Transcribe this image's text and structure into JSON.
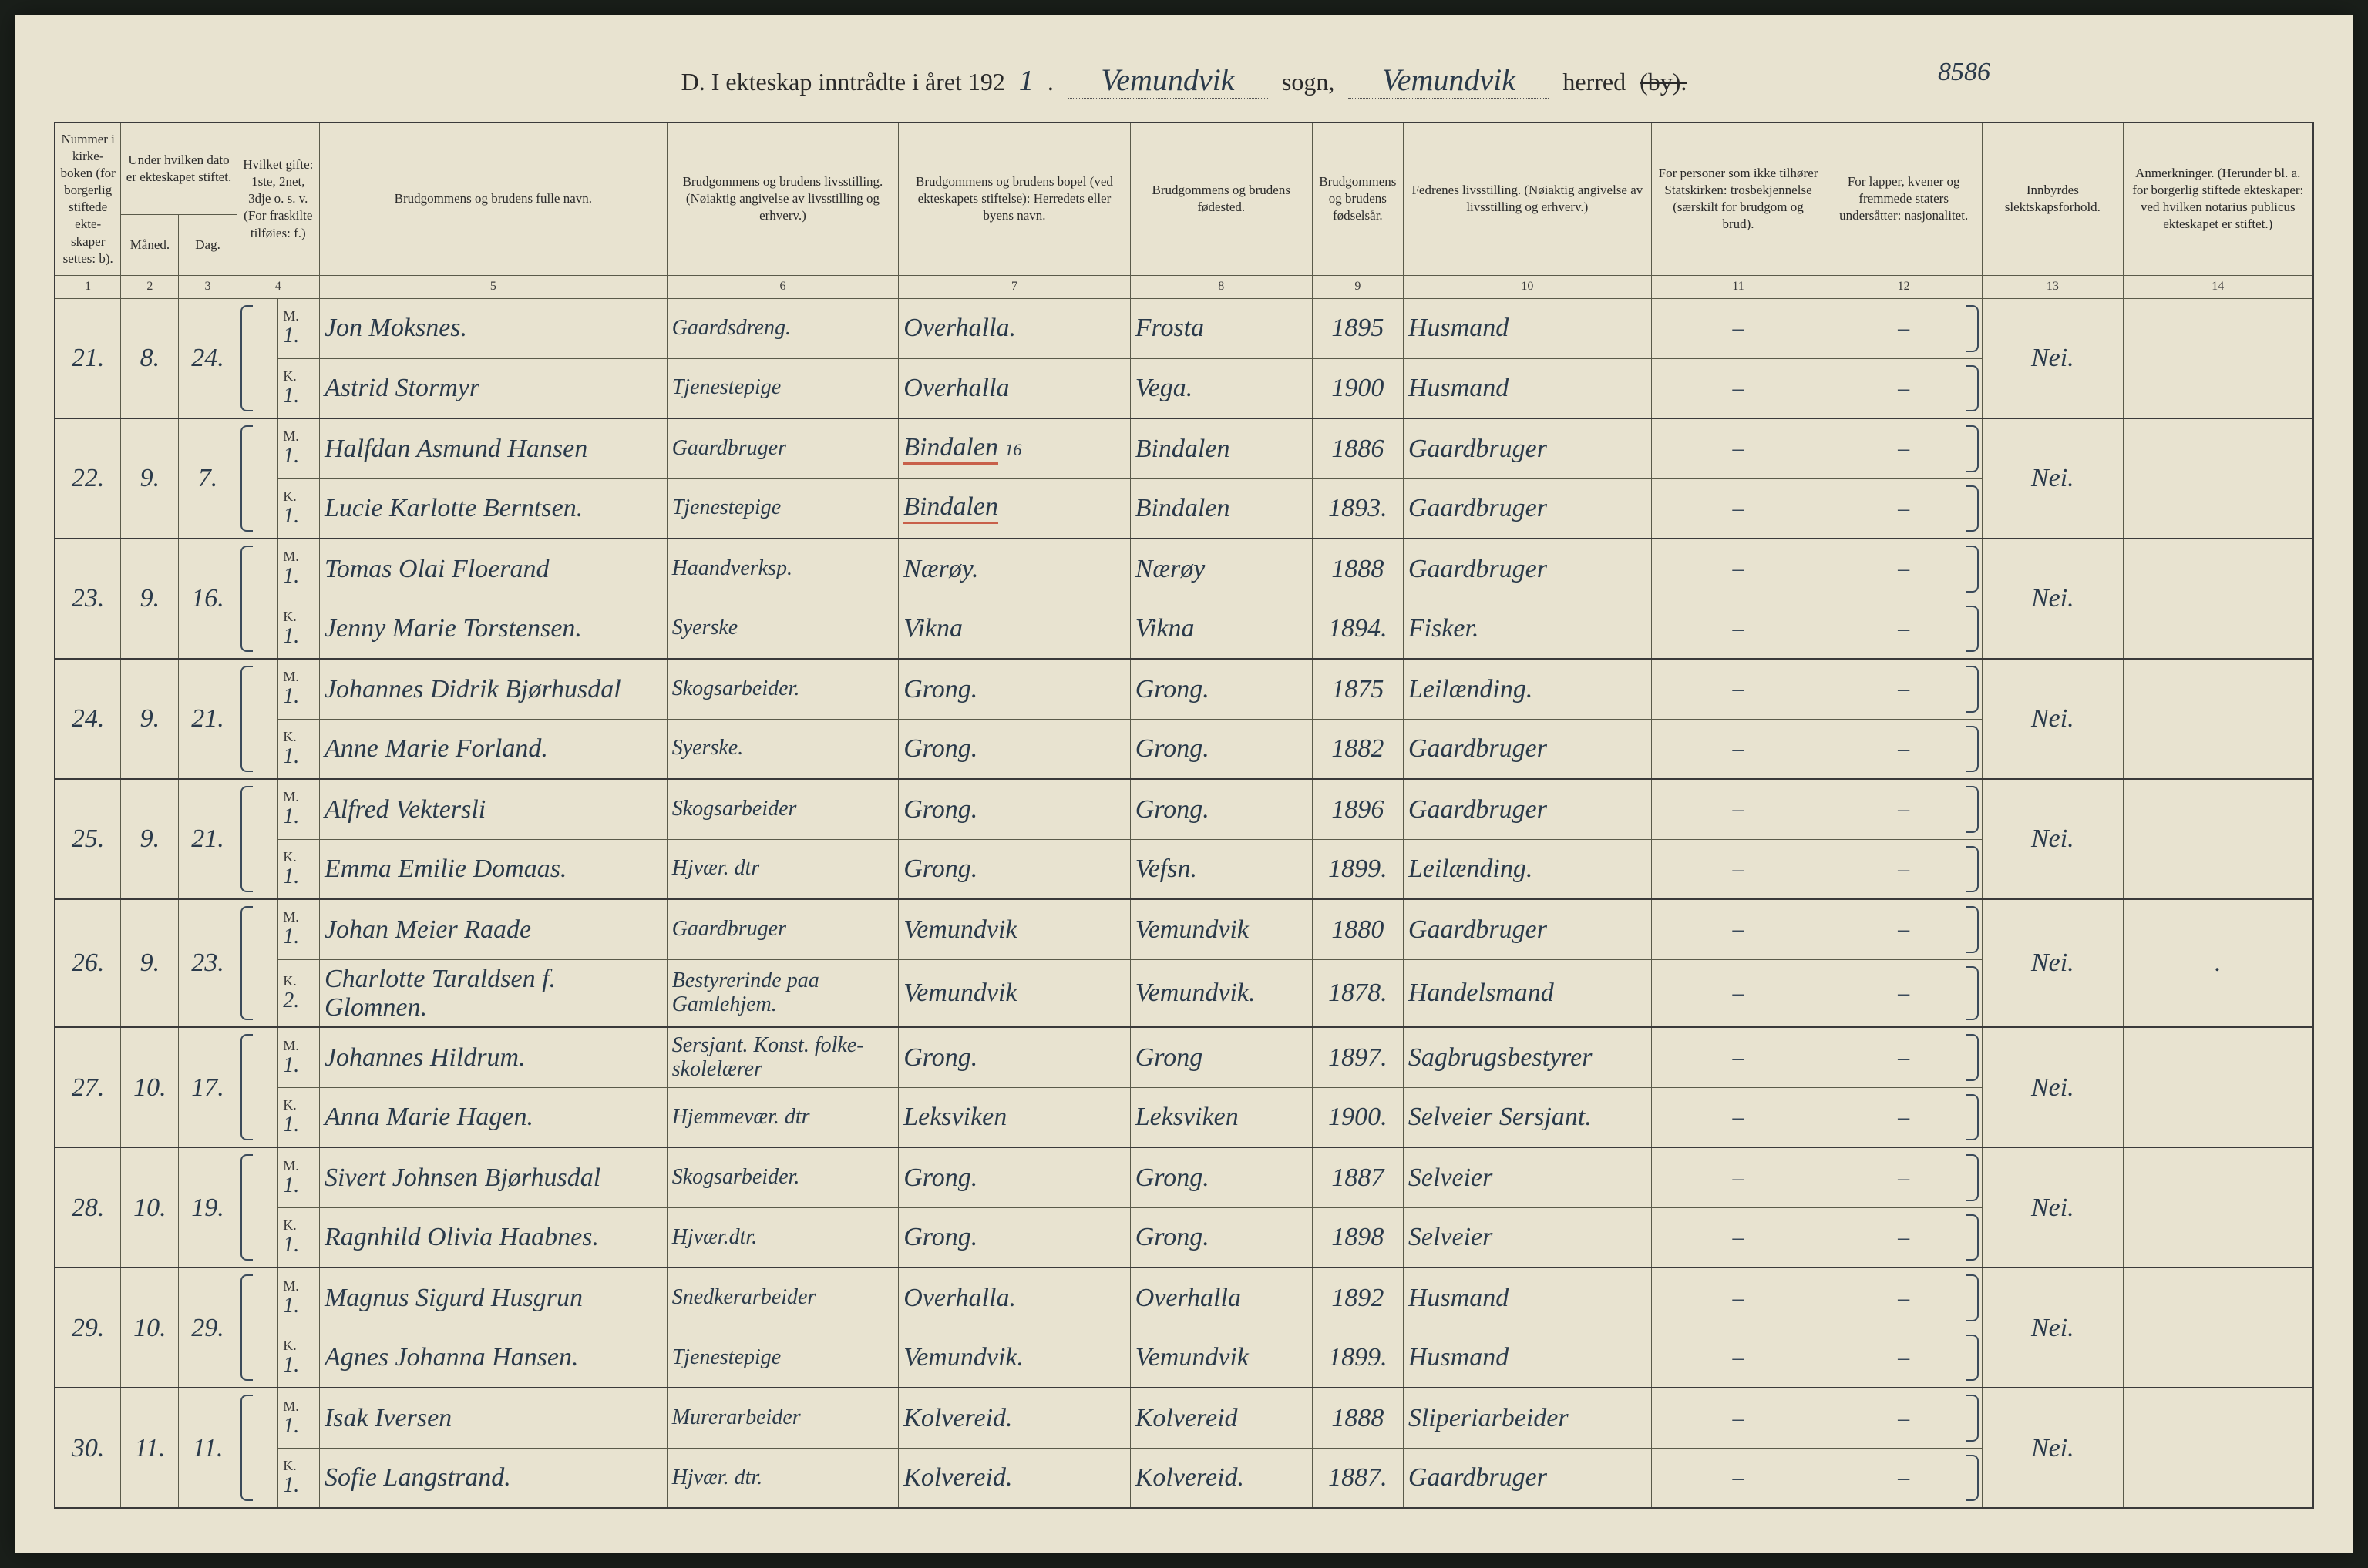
{
  "page_number": "8586",
  "heading": {
    "prefix": "D.  I ekteskap inntrådte i året 192",
    "year_suffix": "1",
    "sogn_value": "Vemundvik",
    "sogn_label": "sogn,",
    "herred_value": "Vemundvik",
    "herred_label": "herred",
    "struck": "(by)."
  },
  "columns": {
    "1": "Nummer i kirke­boken (for bor­gerlig stiftede ekte­skaper settes: b).",
    "2a": "Under hvilken dato er ekte­skapet stiftet.",
    "2_m": "Måned.",
    "2_d": "Dag.",
    "3": "Hvilket gifte: 1ste, 2net, 3dje o. s. v. (For fraskilte tilføies: f.)",
    "5": "Brudgommens og brudens fulle navn.",
    "6": "Brudgommens og brudens livsstilling. (Nøiaktig angivelse av livs­stilling og erhverv.)",
    "7": "Brudgommens og brudens bopel (ved ekteskapets stiftelse): Herredets eller byens navn.",
    "8": "Brudgommens og brudens fødested.",
    "9": "Brudgom­mens og brudens fødsels­år.",
    "10": "Fedrenes livsstilling. (Nøiaktig angivelse av livsstilling og erhverv.)",
    "11": "For personer som ikke tilhører Statskirken: trosbekjennelse (særskilt for brudgom og brud).",
    "12": "For lapper, kvener og fremmede staters undersåtter: nasjonalitet.",
    "13": "Innbyrdes slektskapsforhold.",
    "14": "Anmerkninger. (Herunder bl. a. for borgerlig stiftede ekte­skaper: ved hvilken notarius publicus ekteskapet er stiftet.)"
  },
  "colnums": [
    "1",
    "2",
    "3",
    "4",
    "5",
    "6",
    "7",
    "8",
    "9",
    "10",
    "11",
    "12",
    "13",
    "14"
  ],
  "mk": {
    "m": "M.",
    "k": "K."
  },
  "entries": [
    {
      "no": "21.",
      "month": "8.",
      "day": "24.",
      "m": {
        "gifte": "1.",
        "name": "Jon Moksnes.",
        "stilling": "Gaardsdreng.",
        "bopel": "Overhalla.",
        "fodested": "Frosta",
        "aar": "1895",
        "far": "Husmand"
      },
      "k": {
        "gifte": "1.",
        "name": "Astrid Stormyr",
        "stilling": "Tjenestepige",
        "bopel": "Overhalla",
        "fodested": "Vega.",
        "aar": "1900",
        "far": "Husmand"
      },
      "c11m": "–",
      "c12m": "–",
      "c11k": "–",
      "c12k": "–",
      "c13": "Nei.",
      "c14": ""
    },
    {
      "no": "22.",
      "month": "9.",
      "day": "7.",
      "m": {
        "gifte": "1.",
        "name": "Halfdan Asmund Hansen",
        "stilling": "Gaardbruger",
        "bopel": "Bindalen",
        "bopel_red": true,
        "bopel_suffix": "16",
        "fodested": "Bindalen",
        "aar": "1886",
        "far": "Gaardbruger"
      },
      "k": {
        "gifte": "1.",
        "name": "Lucie Karlotte Berntsen.",
        "stilling": "Tjenestepige",
        "bopel": "Bindalen",
        "bopel_red": true,
        "fodested": "Bindalen",
        "aar": "1893.",
        "far": "Gaardbruger"
      },
      "c11m": "–",
      "c12m": "–",
      "c11k": "–",
      "c12k": "–",
      "c13": "Nei.",
      "c14": ""
    },
    {
      "no": "23.",
      "month": "9.",
      "day": "16.",
      "m": {
        "gifte": "1.",
        "name": "Tomas Olai Floerand",
        "stilling": "Haandverksp.",
        "bopel": "Nærøy.",
        "fodested": "Nærøy",
        "aar": "1888",
        "far": "Gaardbruger"
      },
      "k": {
        "gifte": "1.",
        "name": "Jenny Marie Torstensen.",
        "stilling": "Syerske",
        "bopel": "Vikna",
        "fodested": "Vikna",
        "aar": "1894.",
        "far": "Fisker."
      },
      "c11m": "–",
      "c12m": "–",
      "c11k": "–",
      "c12k": "–",
      "c13": "Nei.",
      "c14": ""
    },
    {
      "no": "24.",
      "month": "9.",
      "day": "21.",
      "m": {
        "gifte": "1.",
        "name": "Johannes Didrik Bjørhusdal",
        "stilling": "Skogsarbeider.",
        "bopel": "Grong.",
        "fodested": "Grong.",
        "aar": "1875",
        "far": "Leilænding."
      },
      "k": {
        "gifte": "1.",
        "name": "Anne Marie Forland.",
        "stilling": "Syerske.",
        "bopel": "Grong.",
        "fodested": "Grong.",
        "aar": "1882",
        "far": "Gaardbruger"
      },
      "c11m": "–",
      "c12m": "–",
      "c11k": "–",
      "c12k": "–",
      "c13": "Nei.",
      "c14": ""
    },
    {
      "no": "25.",
      "month": "9.",
      "day": "21.",
      "m": {
        "gifte": "1.",
        "name": "Alfred Vektersli",
        "stilling": "Skogsarbeider",
        "bopel": "Grong.",
        "fodested": "Grong.",
        "aar": "1896",
        "far": "Gaardbruger"
      },
      "k": {
        "gifte": "1.",
        "name": "Emma Emilie Domaas.",
        "stilling": "Hjvær. dtr",
        "bopel": "Grong.",
        "fodested": "Vefsn.",
        "aar": "1899.",
        "far": "Leilænding."
      },
      "c11m": "–",
      "c12m": "–",
      "c11k": "–",
      "c12k": "–",
      "c13": "Nei.",
      "c14": ""
    },
    {
      "no": "26.",
      "month": "9.",
      "day": "23.",
      "m": {
        "gifte": "1.",
        "name": "Johan Meier Raade",
        "stilling": "Gaardbruger",
        "bopel": "Vemundvik",
        "fodested": "Vemundvik",
        "aar": "1880",
        "far": "Gaardbruger"
      },
      "k": {
        "gifte": "2.",
        "name": "Charlotte Taraldsen f. Glomnen.",
        "stilling": "Bestyrerinde paa Gamlehjem.",
        "bopel": "Vemundvik",
        "fodested": "Vemundvik.",
        "aar": "1878.",
        "far": "Handelsmand"
      },
      "c11m": "–",
      "c12m": "–",
      "c11k": "–",
      "c12k": "–",
      "c13": "Nei.",
      "c14": "."
    },
    {
      "no": "27.",
      "month": "10.",
      "day": "17.",
      "m": {
        "gifte": "1.",
        "name": "Johannes Hildrum.",
        "stilling": "Sersjant. Konst. folke­skolelærer",
        "bopel": "Grong.",
        "fodested": "Grong",
        "aar": "1897.",
        "far": "Sagbrugsbestyrer"
      },
      "k": {
        "gifte": "1.",
        "name": "Anna Marie Hagen.",
        "stilling": "Hjemmevær. dtr",
        "bopel": "Leksviken",
        "fodested": "Leksviken",
        "aar": "1900.",
        "far": "Selveier Sersjant."
      },
      "c11m": "–",
      "c12m": "–",
      "c11k": "–",
      "c12k": "–",
      "c13": "Nei.",
      "c14": ""
    },
    {
      "no": "28.",
      "month": "10.",
      "day": "19.",
      "m": {
        "gifte": "1.",
        "name": "Sivert Johnsen Bjørhusdal",
        "stilling": "Skogsarbeider.",
        "bopel": "Grong.",
        "fodested": "Grong.",
        "aar": "1887",
        "far": "Selveier"
      },
      "k": {
        "gifte": "1.",
        "name": "Ragnhild Olivia Haabnes.",
        "stilling": "Hjvær.dtr.",
        "bopel": "Grong.",
        "fodested": "Grong.",
        "aar": "1898",
        "far": "Selveier"
      },
      "c11m": "–",
      "c12m": "–",
      "c11k": "–",
      "c12k": "–",
      "c13": "Nei.",
      "c14": ""
    },
    {
      "no": "29.",
      "month": "10.",
      "day": "29.",
      "m": {
        "gifte": "1.",
        "name": "Magnus Sigurd Husgrun",
        "stilling": "Snedkerarbeider",
        "bopel": "Overhalla.",
        "fodested": "Overhalla",
        "aar": "1892",
        "far": "Husmand"
      },
      "k": {
        "gifte": "1.",
        "name": "Agnes Johanna Hansen.",
        "stilling": "Tjenestepige",
        "bopel": "Vemundvik.",
        "fodested": "Vemundvik",
        "aar": "1899.",
        "far": "Husmand"
      },
      "c11m": "–",
      "c12m": "–",
      "c11k": "–",
      "c12k": "–",
      "c13": "Nei.",
      "c14": ""
    },
    {
      "no": "30.",
      "month": "11.",
      "day": "11.",
      "m": {
        "gifte": "1.",
        "name": "Isak Iversen",
        "stilling": "Murerarbeider",
        "bopel": "Kolvereid.",
        "fodested": "Kolvereid",
        "aar": "1888",
        "far": "Sliperiarbeider"
      },
      "k": {
        "gifte": "1.",
        "name": "Sofie Langstrand.",
        "stilling": "Hjvær. dtr.",
        "bopel": "Kolvereid.",
        "fodested": "Kolvereid.",
        "aar": "1887.",
        "far": "Gaardbruger"
      },
      "c11m": "–",
      "c12m": "–",
      "c11k": "–",
      "c12k": "–",
      "c13": "Nei.",
      "c14": ""
    }
  ]
}
